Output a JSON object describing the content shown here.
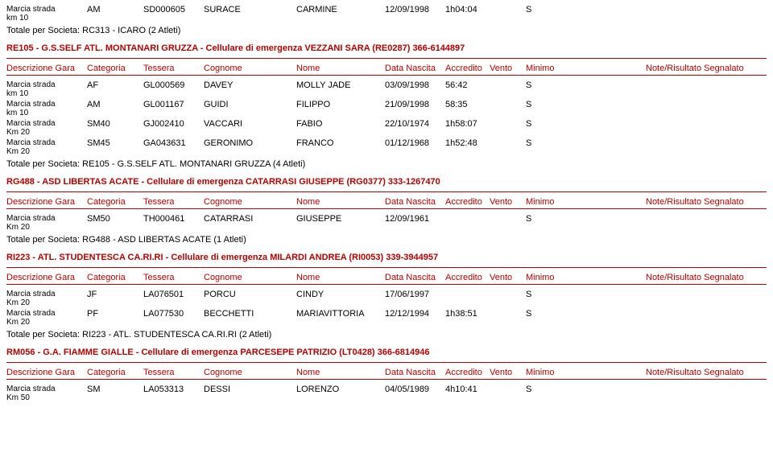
{
  "top": {
    "row": {
      "desc1": "Marcia strada",
      "desc2": "km 10",
      "cat": "AM",
      "tess": "SD000605",
      "cog": "SURACE",
      "nome": "CARMINE",
      "data": "12/09/1998",
      "acc": "1h04:04",
      "min": "S"
    },
    "total": "Totale per Societa: RC313 - ICARO (2 Atleti)"
  },
  "headers": {
    "desc": "Descrizione Gara",
    "cat": "Categoria",
    "tess": "Tessera",
    "cog": "Cognome",
    "nome": "Nome",
    "data": "Data Nascita",
    "acc": "Accredito",
    "vento": "Vento",
    "min": "Minimo",
    "note": "Note/Risultato Segnalato"
  },
  "soc1": {
    "title": "RE105 - G.S.SELF ATL. MONTANARI GRUZZA - Cellulare di emergenza VEZZANI SARA (RE0287) 366-6144897",
    "rows": [
      {
        "desc1": "Marcia strada",
        "desc2": "km 10",
        "cat": "AF",
        "tess": "GL000569",
        "cog": "DAVEY",
        "nome": "MOLLY JADE",
        "data": "03/09/1998",
        "acc": "56:42",
        "min": "S"
      },
      {
        "desc1": "Marcia strada",
        "desc2": "km 10",
        "cat": "AM",
        "tess": "GL001167",
        "cog": "GUIDI",
        "nome": "FILIPPO",
        "data": "21/09/1998",
        "acc": "58:35",
        "min": "S"
      },
      {
        "desc1": "Marcia strada",
        "desc2": "Km 20",
        "cat": "SM40",
        "tess": "GJ002410",
        "cog": "VACCARI",
        "nome": "FABIO",
        "data": "22/10/1974",
        "acc": "1h58:07",
        "min": "S"
      },
      {
        "desc1": "Marcia strada",
        "desc2": "Km 20",
        "cat": "SM45",
        "tess": "GA043631",
        "cog": "GERONIMO",
        "nome": "FRANCO",
        "data": "01/12/1968",
        "acc": "1h52:48",
        "min": "S"
      }
    ],
    "total": "Totale per Societa: RE105 - G.S.SELF ATL. MONTANARI GRUZZA (4 Atleti)"
  },
  "soc2": {
    "title": "RG488 - ASD LIBERTAS ACATE - Cellulare di emergenza CATARRASI GIUSEPPE (RG0377) 333-1267470",
    "rows": [
      {
        "desc1": "Marcia strada",
        "desc2": "Km 20",
        "cat": "SM50",
        "tess": "TH000461",
        "cog": "CATARRASI",
        "nome": "GIUSEPPE",
        "data": "12/09/1961",
        "acc": "",
        "min": "S"
      }
    ],
    "total": "Totale per Societa: RG488 - ASD LIBERTAS ACATE (1 Atleti)"
  },
  "soc3": {
    "title": "RI223 - ATL. STUDENTESCA CA.RI.RI - Cellulare di emergenza MILARDI ANDREA (RI0053) 339-3944957",
    "rows": [
      {
        "desc1": "Marcia strada",
        "desc2": "Km 20",
        "cat": "JF",
        "tess": "LA076501",
        "cog": "PORCU",
        "nome": "CINDY",
        "data": "17/06/1997",
        "acc": "",
        "min": "S"
      },
      {
        "desc1": "Marcia strada",
        "desc2": "Km 20",
        "cat": "PF",
        "tess": "LA077530",
        "cog": "BECCHETTI",
        "nome": "MARIAVITTORIA",
        "data": "12/12/1994",
        "acc": "1h38:51",
        "min": "S"
      }
    ],
    "total": "Totale per Societa: RI223 - ATL. STUDENTESCA CA.RI.RI (2 Atleti)"
  },
  "soc4": {
    "title": "RM056 - G.A. FIAMME GIALLE - Cellulare di emergenza PARCESEPE PATRIZIO (LT0428) 366-6814946",
    "rows": [
      {
        "desc1": "Marcia strada",
        "desc2": "Km 50",
        "cat": "SM",
        "tess": "LA053313",
        "cog": "DESSI",
        "nome": "LORENZO",
        "data": "04/05/1989",
        "acc": "4h10:41",
        "min": "S"
      }
    ]
  }
}
